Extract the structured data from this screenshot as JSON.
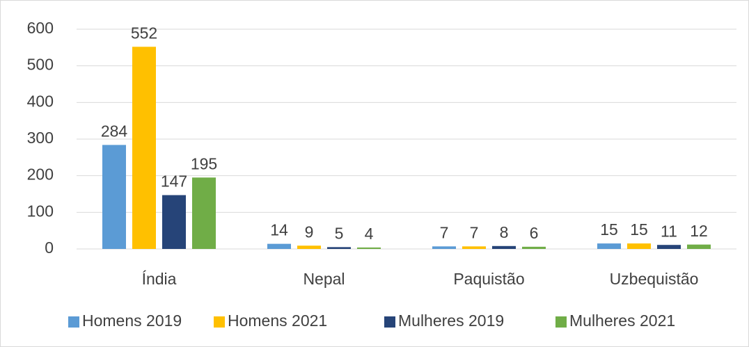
{
  "chart_data": {
    "type": "bar",
    "categories": [
      "Índia",
      "Nepal",
      "Paquistão",
      "Uzbequistão"
    ],
    "series": [
      {
        "name": "Homens 2019",
        "color": "#5b9bd5",
        "values": [
          284,
          14,
          7,
          15
        ]
      },
      {
        "name": "Homens 2021",
        "color": "#ffc000",
        "values": [
          552,
          9,
          7,
          15
        ]
      },
      {
        "name": "Mulheres 2019",
        "color": "#264478",
        "values": [
          147,
          5,
          8,
          11
        ]
      },
      {
        "name": "Mulheres 2021",
        "color": "#70ad47",
        "values": [
          195,
          4,
          6,
          12
        ]
      }
    ],
    "ylim": [
      0,
      600
    ],
    "yticks": [
      0,
      100,
      200,
      300,
      400,
      500,
      600
    ],
    "grid": true,
    "legend": "bottom"
  }
}
